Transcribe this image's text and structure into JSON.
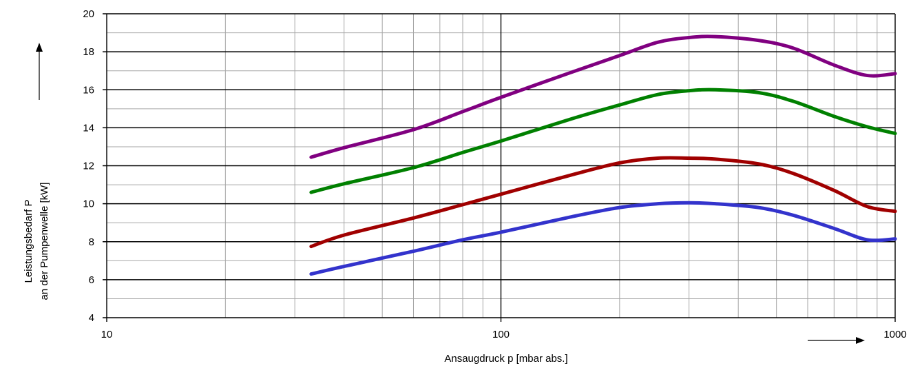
{
  "chart_data": {
    "type": "line",
    "title": "",
    "xlabel": "Ansaugdruck p [mbar abs.]",
    "ylabel_lines": [
      "Leistungsbedarf P",
      "an der Pumpenwelle [kW]"
    ],
    "x_scale": "log",
    "xlim": [
      10,
      1000
    ],
    "ylim": [
      4,
      20
    ],
    "x_tick_labels": [
      "10",
      "100",
      "1000"
    ],
    "y_tick_labels": [
      "4",
      "6",
      "8",
      "10",
      "12",
      "14",
      "16",
      "18",
      "20"
    ],
    "grid": true,
    "legend": "none",
    "series": [
      {
        "color": "#800080",
        "points": [
          [
            33,
            12.45
          ],
          [
            40,
            12.95
          ],
          [
            60,
            13.9
          ],
          [
            80,
            14.85
          ],
          [
            100,
            15.6
          ],
          [
            150,
            16.9
          ],
          [
            200,
            17.8
          ],
          [
            250,
            18.5
          ],
          [
            300,
            18.75
          ],
          [
            350,
            18.8
          ],
          [
            450,
            18.6
          ],
          [
            550,
            18.2
          ],
          [
            700,
            17.3
          ],
          [
            850,
            16.75
          ],
          [
            1000,
            16.85
          ]
        ]
      },
      {
        "color": "#008000",
        "points": [
          [
            33,
            10.6
          ],
          [
            40,
            11.05
          ],
          [
            60,
            11.9
          ],
          [
            80,
            12.7
          ],
          [
            100,
            13.3
          ],
          [
            150,
            14.45
          ],
          [
            200,
            15.2
          ],
          [
            250,
            15.75
          ],
          [
            300,
            15.95
          ],
          [
            350,
            16.0
          ],
          [
            450,
            15.85
          ],
          [
            550,
            15.4
          ],
          [
            700,
            14.6
          ],
          [
            850,
            14.05
          ],
          [
            1000,
            13.7
          ]
        ]
      },
      {
        "color": "#A00000",
        "points": [
          [
            33,
            7.75
          ],
          [
            40,
            8.35
          ],
          [
            60,
            9.25
          ],
          [
            80,
            9.95
          ],
          [
            100,
            10.5
          ],
          [
            150,
            11.5
          ],
          [
            200,
            12.15
          ],
          [
            250,
            12.4
          ],
          [
            300,
            12.4
          ],
          [
            350,
            12.35
          ],
          [
            450,
            12.1
          ],
          [
            550,
            11.6
          ],
          [
            700,
            10.7
          ],
          [
            850,
            9.85
          ],
          [
            1000,
            9.6
          ]
        ]
      },
      {
        "color": "#3333CC",
        "points": [
          [
            33,
            6.3
          ],
          [
            40,
            6.7
          ],
          [
            60,
            7.5
          ],
          [
            80,
            8.1
          ],
          [
            100,
            8.5
          ],
          [
            150,
            9.3
          ],
          [
            200,
            9.8
          ],
          [
            250,
            10.0
          ],
          [
            300,
            10.05
          ],
          [
            350,
            10.0
          ],
          [
            450,
            9.8
          ],
          [
            550,
            9.4
          ],
          [
            700,
            8.7
          ],
          [
            850,
            8.1
          ],
          [
            1000,
            8.15
          ]
        ]
      }
    ]
  }
}
